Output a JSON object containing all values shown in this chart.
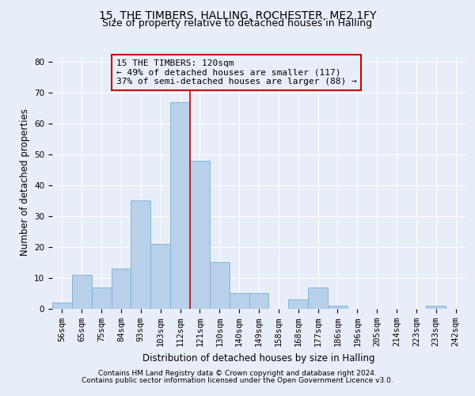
{
  "title1": "15, THE TIMBERS, HALLING, ROCHESTER, ME2 1FY",
  "title2": "Size of property relative to detached houses in Halling",
  "xlabel": "Distribution of detached houses by size in Halling",
  "ylabel": "Number of detached properties",
  "footer1": "Contains HM Land Registry data © Crown copyright and database right 2024.",
  "footer2": "Contains public sector information licensed under the Open Government Licence v3.0.",
  "categories": [
    "56sqm",
    "65sqm",
    "75sqm",
    "84sqm",
    "93sqm",
    "103sqm",
    "112sqm",
    "121sqm",
    "130sqm",
    "140sqm",
    "149sqm",
    "158sqm",
    "168sqm",
    "177sqm",
    "186sqm",
    "196sqm",
    "205sqm",
    "214sqm",
    "223sqm",
    "233sqm",
    "242sqm"
  ],
  "values": [
    2,
    11,
    7,
    13,
    35,
    21,
    67,
    48,
    15,
    5,
    5,
    0,
    3,
    7,
    1,
    0,
    0,
    0,
    0,
    1,
    0
  ],
  "bar_color": "#b8d0ea",
  "bar_edge_color": "#7aafd4",
  "vline_x": 6.5,
  "vline_color": "#cc0000",
  "annotation_line1": "15 THE TIMBERS: 120sqm",
  "annotation_line2": "← 49% of detached houses are smaller (117)",
  "annotation_line3": "37% of semi-detached houses are larger (88) →",
  "box_edge_color": "#cc0000",
  "ylim": [
    0,
    82
  ],
  "yticks": [
    0,
    10,
    20,
    30,
    40,
    50,
    60,
    70,
    80
  ],
  "bg_color": "#e8eef8",
  "grid_color": "#ffffff",
  "title_fontsize": 10,
  "subtitle_fontsize": 9,
  "tick_fontsize": 7.5,
  "ylabel_fontsize": 8.5,
  "xlabel_fontsize": 8.5,
  "annotation_fontsize": 8,
  "footer_fontsize": 6.5
}
